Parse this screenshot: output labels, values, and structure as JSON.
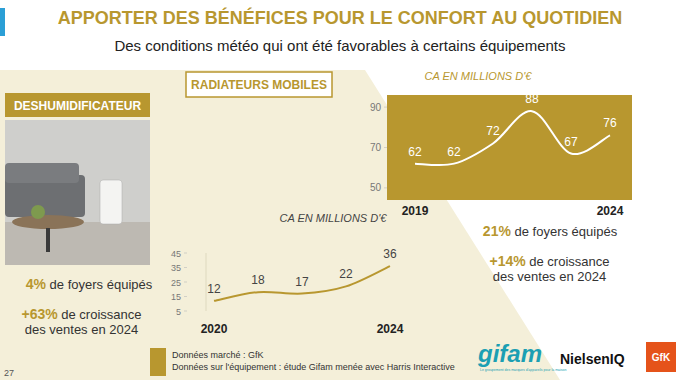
{
  "page": {
    "title": "APPORTER DES BÉNÉFICES POUR LE CONFORT AU QUOTIDIEN",
    "subtitle": "Des conditions météo qui ont été favorables à certains équipements",
    "page_number": "27",
    "sources": [
      "Données marché : GfK",
      "Données sur l'équipement : étude Gifam menée avec Harris Interactive"
    ],
    "logos": [
      "gifam",
      "NielsenIQ",
      "GfK"
    ],
    "gifam_tagline": "Le groupement des marques d'appareils pour la maison",
    "panels": [
      {
        "label": "DESHUMIDIFICATEUR",
        "stats": [
          {
            "figure": "4%",
            "text": "de foyers équipés"
          },
          {
            "figure": "+63%",
            "text": "de croissance des ventes en 2024"
          }
        ]
      },
      {
        "label": "RADIATEURS MOBILES",
        "stats": [
          {
            "figure": "21%",
            "text": "de foyers équipés"
          },
          {
            "figure": "+14%",
            "text": "de croissance des ventes en 2024"
          }
        ]
      }
    ]
  },
  "chart_data": [
    {
      "type": "line",
      "title": "CA EN MILLIONS D'€",
      "categories": [
        "2020",
        null,
        null,
        null,
        "2024"
      ],
      "values": [
        12,
        18,
        17,
        22,
        36
      ],
      "color": "#b8972f",
      "ylim": [
        5,
        45
      ],
      "yticks": [
        5,
        15,
        25,
        35,
        45
      ],
      "grid": false,
      "data_labels": true,
      "line_style": "solid"
    },
    {
      "type": "line",
      "title": "CA EN MILLIONS D'€",
      "categories": [
        "2019",
        null,
        null,
        null,
        null,
        "2024"
      ],
      "values": [
        62,
        62,
        72,
        88,
        67,
        76
      ],
      "color": "#ffffff",
      "ylim": [
        44,
        96
      ],
      "yticks": [
        50,
        70,
        90
      ],
      "grid": false,
      "data_labels": true,
      "line_style": "solid"
    }
  ]
}
